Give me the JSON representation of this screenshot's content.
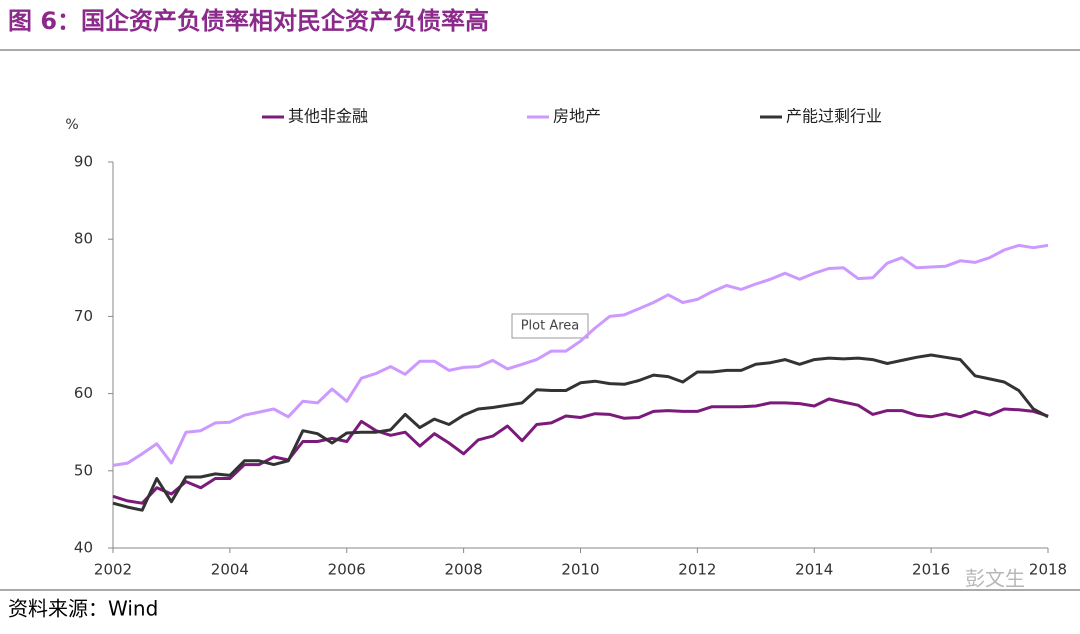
{
  "header": {
    "title": "图 6：国企资产负债率相对民企资产负债率高"
  },
  "chart_data": {
    "type": "line",
    "y_unit": "%",
    "annotation": "Plot Area",
    "watermark": "彭文生",
    "x": [
      2002,
      2002.25,
      2002.5,
      2002.75,
      2003,
      2003.25,
      2003.5,
      2003.75,
      2004,
      2004.25,
      2004.5,
      2004.75,
      2005,
      2005.25,
      2005.5,
      2005.75,
      2006,
      2006.25,
      2006.5,
      2006.75,
      2007,
      2007.25,
      2007.5,
      2007.75,
      2008,
      2008.25,
      2008.5,
      2008.75,
      2009,
      2009.25,
      2009.5,
      2009.75,
      2010,
      2010.25,
      2010.5,
      2010.75,
      2011,
      2011.25,
      2011.5,
      2011.75,
      2012,
      2012.25,
      2012.5,
      2012.75,
      2013,
      2013.25,
      2013.5,
      2013.75,
      2014,
      2014.25,
      2014.5,
      2014.75,
      2015,
      2015.25,
      2015.5,
      2015.75,
      2016,
      2016.25,
      2016.5,
      2016.75,
      2017,
      2017.25,
      2017.5,
      2017.75,
      2018
    ],
    "xlim": [
      2002,
      2018
    ],
    "xticks": [
      2002,
      2004,
      2006,
      2008,
      2010,
      2012,
      2014,
      2016,
      2018
    ],
    "ylim": [
      40,
      90
    ],
    "yticks": [
      40,
      50,
      60,
      70,
      80,
      90
    ],
    "series": [
      {
        "name": "其他非金融",
        "color": "#7b1a7b",
        "values": [
          46.7,
          46.1,
          45.8,
          47.8,
          47,
          48.6,
          47.8,
          49,
          49,
          50.8,
          50.8,
          51.8,
          51.4,
          53.8,
          53.8,
          54.2,
          53.8,
          56.4,
          55.2,
          54.6,
          55,
          53.2,
          54.8,
          53.6,
          52.2,
          54,
          54.5,
          55.8,
          53.9,
          56,
          56.2,
          57.1,
          56.9,
          57.4,
          57.3,
          56.8,
          56.9,
          57.7,
          57.8,
          57.7,
          57.7,
          58.3,
          58.3,
          58.3,
          58.4,
          58.8,
          58.8,
          58.7,
          58.4,
          59.3,
          58.9,
          58.5,
          57.3,
          57.8,
          57.8,
          57.2,
          57,
          57.4,
          57,
          57.7,
          57.2,
          58,
          57.9,
          57.7,
          57.1
        ]
      },
      {
        "name": "房地产",
        "color": "#cc99ff",
        "values": [
          50.7,
          51,
          52.2,
          53.5,
          51,
          55,
          55.2,
          56.2,
          56.3,
          57.2,
          57.6,
          58,
          57,
          59,
          58.8,
          60.6,
          59,
          62,
          62.6,
          63.5,
          62.5,
          64.2,
          64.2,
          63,
          63.4,
          63.5,
          64.3,
          63.2,
          63.8,
          64.4,
          65.5,
          65.5,
          66.8,
          68.5,
          70,
          70.2,
          71,
          71.8,
          72.8,
          71.8,
          72.2,
          73.2,
          74,
          73.5,
          74.2,
          74.8,
          75.6,
          74.8,
          75.6,
          76.2,
          76.3,
          74.9,
          75,
          76.9,
          77.6,
          76.3,
          76.4,
          76.5,
          77.2,
          77,
          77.6,
          78.6,
          79.2,
          78.9,
          79.2
        ]
      },
      {
        "name": "产能过剩行业",
        "color": "#333333",
        "values": [
          45.8,
          45.3,
          44.9,
          49,
          46,
          49.2,
          49.2,
          49.6,
          49.4,
          51.3,
          51.3,
          50.8,
          51.3,
          55.2,
          54.8,
          53.6,
          54.9,
          55,
          55,
          55.3,
          57.3,
          55.6,
          56.7,
          56,
          57.2,
          58,
          58.2,
          58.5,
          58.8,
          60.5,
          60.4,
          60.4,
          61.4,
          61.6,
          61.3,
          61.2,
          61.7,
          62.4,
          62.2,
          61.5,
          62.8,
          62.8,
          63,
          63,
          63.8,
          64,
          64.4,
          63.8,
          64.4,
          64.6,
          64.5,
          64.6,
          64.4,
          63.9,
          64.3,
          64.7,
          65,
          64.7,
          64.4,
          62.3,
          61.9,
          61.5,
          60.4,
          58,
          57
        ]
      }
    ]
  },
  "footer": {
    "source": "资料来源：Wind"
  }
}
